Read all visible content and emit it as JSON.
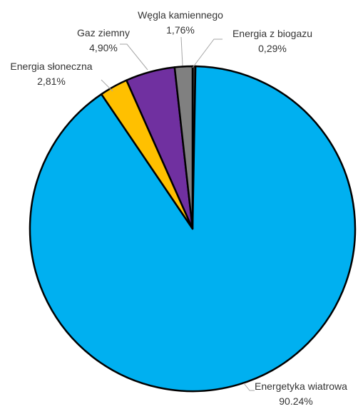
{
  "chart_data": {
    "type": "pie",
    "title": "",
    "start_angle_deg": 0,
    "direction": "clockwise",
    "slices": [
      {
        "label": "Energia z biogazu",
        "value_text": "0,29%",
        "value": 0.29,
        "color": "#404040"
      },
      {
        "label": "Energetyka wiatrowa",
        "value_text": "90.24%",
        "value": 90.24,
        "color": "#00B0F0"
      },
      {
        "label": "Energia słoneczna",
        "value_text": "2,81%",
        "value": 2.81,
        "color": "#FFC000"
      },
      {
        "label": "Gaz ziemny",
        "value_text": "4,90%",
        "value": 4.9,
        "color": "#7030A0"
      },
      {
        "label": "Węgla kamiennego",
        "value_text": "1,76%",
        "value": 1.76,
        "color": "#808080"
      }
    ],
    "slice_stroke": "#000000",
    "leader_line_color": "#A6A6A6"
  }
}
